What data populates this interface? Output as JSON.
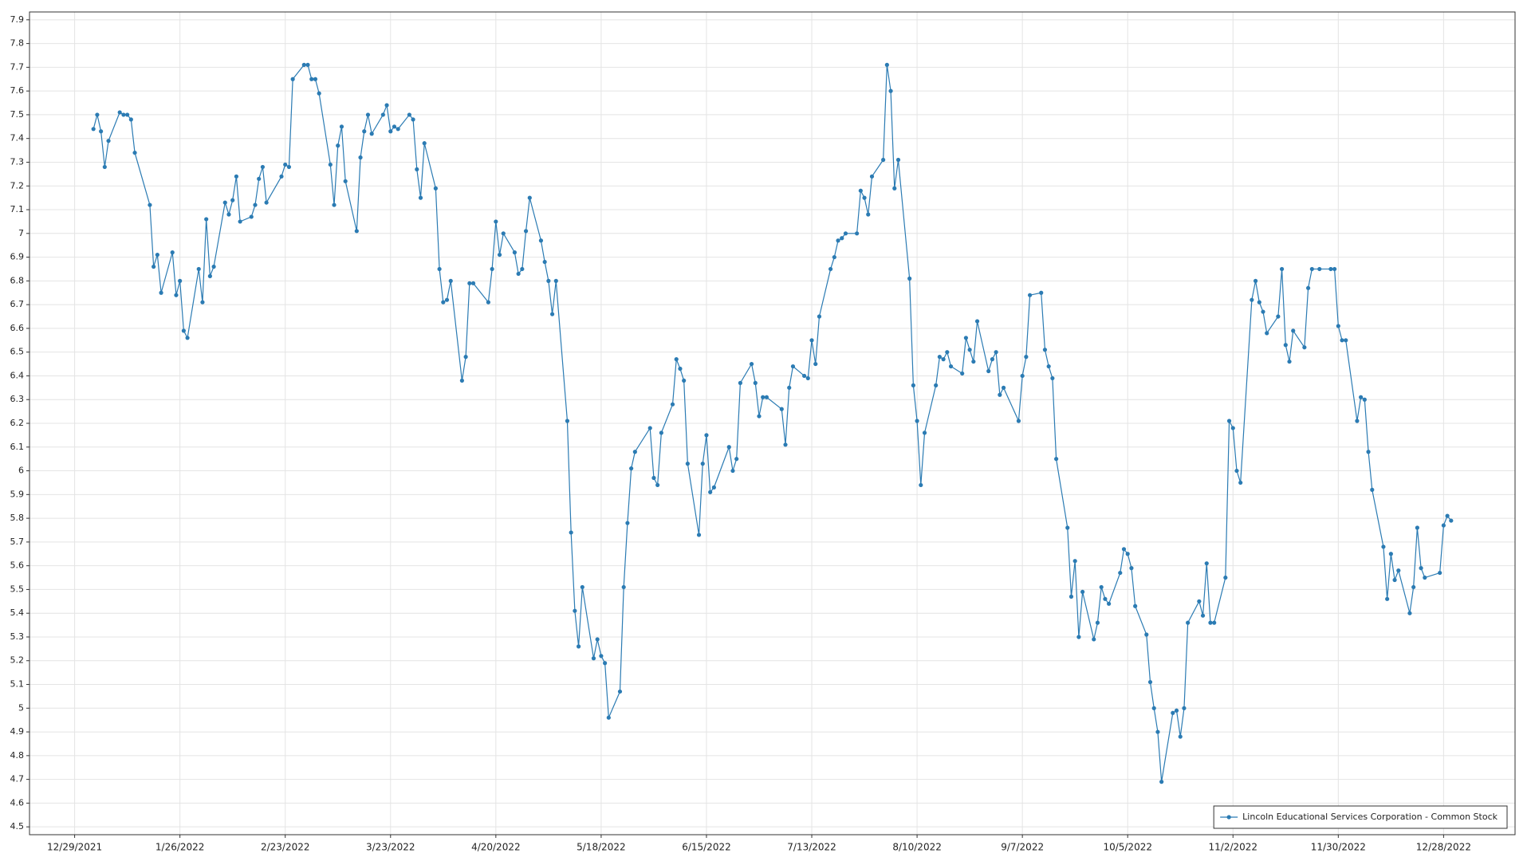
{
  "chart_data": {
    "type": "line",
    "x": [
      "1/3/2022",
      "1/4/2022",
      "1/5/2022",
      "1/6/2022",
      "1/7/2022",
      "1/10/2022",
      "1/11/2022",
      "1/12/2022",
      "1/13/2022",
      "1/14/2022",
      "1/18/2022",
      "1/19/2022",
      "1/20/2022",
      "1/21/2022",
      "1/24/2022",
      "1/25/2022",
      "1/26/2022",
      "1/27/2022",
      "1/28/2022",
      "1/31/2022",
      "2/1/2022",
      "2/2/2022",
      "2/3/2022",
      "2/4/2022",
      "2/7/2022",
      "2/8/2022",
      "2/9/2022",
      "2/10/2022",
      "2/11/2022",
      "2/14/2022",
      "2/15/2022",
      "2/16/2022",
      "2/17/2022",
      "2/18/2022",
      "2/22/2022",
      "2/23/2022",
      "2/24/2022",
      "2/25/2022",
      "2/28/2022",
      "3/1/2022",
      "3/2/2022",
      "3/3/2022",
      "3/4/2022",
      "3/7/2022",
      "3/8/2022",
      "3/9/2022",
      "3/10/2022",
      "3/11/2022",
      "3/14/2022",
      "3/15/2022",
      "3/16/2022",
      "3/17/2022",
      "3/18/2022",
      "3/21/2022",
      "3/22/2022",
      "3/23/2022",
      "3/24/2022",
      "3/25/2022",
      "3/28/2022",
      "3/29/2022",
      "3/30/2022",
      "3/31/2022",
      "4/1/2022",
      "4/4/2022",
      "4/5/2022",
      "4/6/2022",
      "4/7/2022",
      "4/8/2022",
      "4/11/2022",
      "4/12/2022",
      "4/13/2022",
      "4/14/2022",
      "4/18/2022",
      "4/19/2022",
      "4/20/2022",
      "4/21/2022",
      "4/22/2022",
      "4/25/2022",
      "4/26/2022",
      "4/27/2022",
      "4/28/2022",
      "4/29/2022",
      "5/2/2022",
      "5/3/2022",
      "5/4/2022",
      "5/5/2022",
      "5/6/2022",
      "5/9/2022",
      "5/10/2022",
      "5/11/2022",
      "5/12/2022",
      "5/13/2022",
      "5/16/2022",
      "5/17/2022",
      "5/18/2022",
      "5/19/2022",
      "5/20/2022",
      "5/23/2022",
      "5/24/2022",
      "5/25/2022",
      "5/26/2022",
      "5/27/2022",
      "5/31/2022",
      "6/1/2022",
      "6/2/2022",
      "6/3/2022",
      "6/6/2022",
      "6/7/2022",
      "6/8/2022",
      "6/9/2022",
      "6/10/2022",
      "6/13/2022",
      "6/14/2022",
      "6/15/2022",
      "6/16/2022",
      "6/17/2022",
      "6/21/2022",
      "6/22/2022",
      "6/23/2022",
      "6/24/2022",
      "6/27/2022",
      "6/28/2022",
      "6/29/2022",
      "6/30/2022",
      "7/1/2022",
      "7/5/2022",
      "7/6/2022",
      "7/7/2022",
      "7/8/2022",
      "7/11/2022",
      "7/12/2022",
      "7/13/2022",
      "7/14/2022",
      "7/15/2022",
      "7/18/2022",
      "7/19/2022",
      "7/20/2022",
      "7/21/2022",
      "7/22/2022",
      "7/25/2022",
      "7/26/2022",
      "7/27/2022",
      "7/28/2022",
      "7/29/2022",
      "8/1/2022",
      "8/2/2022",
      "8/3/2022",
      "8/4/2022",
      "8/5/2022",
      "8/8/2022",
      "8/9/2022",
      "8/10/2022",
      "8/11/2022",
      "8/12/2022",
      "8/15/2022",
      "8/16/2022",
      "8/17/2022",
      "8/18/2022",
      "8/19/2022",
      "8/22/2022",
      "8/23/2022",
      "8/24/2022",
      "8/25/2022",
      "8/26/2022",
      "8/29/2022",
      "8/30/2022",
      "8/31/2022",
      "9/1/2022",
      "9/2/2022",
      "9/6/2022",
      "9/7/2022",
      "9/8/2022",
      "9/9/2022",
      "9/12/2022",
      "9/13/2022",
      "9/14/2022",
      "9/15/2022",
      "9/16/2022",
      "9/19/2022",
      "9/20/2022",
      "9/21/2022",
      "9/22/2022",
      "9/23/2022",
      "9/26/2022",
      "9/27/2022",
      "9/28/2022",
      "9/29/2022",
      "9/30/2022",
      "10/3/2022",
      "10/4/2022",
      "10/5/2022",
      "10/6/2022",
      "10/7/2022",
      "10/10/2022",
      "10/11/2022",
      "10/12/2022",
      "10/13/2022",
      "10/14/2022",
      "10/17/2022",
      "10/18/2022",
      "10/19/2022",
      "10/20/2022",
      "10/21/2022",
      "10/24/2022",
      "10/25/2022",
      "10/26/2022",
      "10/27/2022",
      "10/28/2022",
      "10/31/2022",
      "11/1/2022",
      "11/2/2022",
      "11/3/2022",
      "11/4/2022",
      "11/7/2022",
      "11/8/2022",
      "11/9/2022",
      "11/10/2022",
      "11/11/2022",
      "11/14/2022",
      "11/15/2022",
      "11/16/2022",
      "11/17/2022",
      "11/18/2022",
      "11/21/2022",
      "11/22/2022",
      "11/23/2022",
      "11/25/2022",
      "11/28/2022",
      "11/29/2022",
      "11/30/2022",
      "12/1/2022",
      "12/2/2022",
      "12/5/2022",
      "12/6/2022",
      "12/7/2022",
      "12/8/2022",
      "12/9/2022",
      "12/12/2022",
      "12/13/2022",
      "12/14/2022",
      "12/15/2022",
      "12/16/2022",
      "12/19/2022",
      "12/20/2022",
      "12/21/2022",
      "12/22/2022",
      "12/23/2022",
      "12/27/2022",
      "12/28/2022",
      "12/29/2022",
      "12/30/2022"
    ],
    "series": [
      {
        "name": "Lincoln Educational Services Corporation - Common Stock",
        "color": "#2b7bb3",
        "values": [
          7.44,
          7.5,
          7.43,
          7.28,
          7.39,
          7.51,
          7.5,
          7.5,
          7.48,
          7.34,
          7.12,
          6.86,
          6.91,
          6.75,
          6.92,
          6.74,
          6.8,
          6.59,
          6.56,
          6.85,
          6.71,
          7.06,
          6.82,
          6.86,
          7.13,
          7.08,
          7.14,
          7.24,
          7.05,
          7.07,
          7.12,
          7.23,
          7.28,
          7.13,
          7.24,
          7.29,
          7.28,
          7.65,
          7.71,
          7.71,
          7.65,
          7.65,
          7.59,
          7.29,
          7.12,
          7.37,
          7.45,
          7.22,
          7.01,
          7.32,
          7.43,
          7.5,
          7.42,
          7.5,
          7.54,
          7.43,
          7.45,
          7.44,
          7.5,
          7.48,
          7.27,
          7.15,
          7.38,
          7.19,
          6.85,
          6.71,
          6.72,
          6.8,
          6.38,
          6.48,
          6.79,
          6.79,
          6.71,
          6.85,
          7.05,
          6.91,
          7.0,
          6.92,
          6.83,
          6.85,
          7.01,
          7.15,
          6.97,
          6.88,
          6.8,
          6.66,
          6.8,
          6.21,
          5.74,
          5.41,
          5.26,
          5.51,
          5.21,
          5.29,
          5.22,
          5.19,
          4.96,
          5.07,
          5.51,
          5.78,
          6.01,
          6.08,
          6.18,
          5.97,
          5.94,
          6.16,
          6.28,
          6.47,
          6.43,
          6.38,
          6.03,
          5.73,
          6.03,
          6.15,
          5.91,
          5.93,
          6.1,
          6.0,
          6.05,
          6.37,
          6.45,
          6.37,
          6.23,
          6.31,
          6.31,
          6.26,
          6.11,
          6.35,
          6.44,
          6.4,
          6.39,
          6.55,
          6.45,
          6.65,
          6.85,
          6.9,
          6.97,
          6.98,
          7.0,
          7.0,
          7.18,
          7.15,
          7.08,
          7.24,
          7.31,
          7.71,
          7.6,
          7.19,
          7.31,
          6.81,
          6.36,
          6.21,
          5.94,
          6.16,
          6.36,
          6.48,
          6.47,
          6.5,
          6.44,
          6.41,
          6.56,
          6.51,
          6.46,
          6.63,
          6.42,
          6.47,
          6.5,
          6.32,
          6.35,
          6.21,
          6.4,
          6.48,
          6.74,
          6.75,
          6.51,
          6.44,
          6.39,
          6.05,
          5.76,
          5.47,
          5.62,
          5.3,
          5.49,
          5.29,
          5.36,
          5.51,
          5.46,
          5.44,
          5.57,
          5.67,
          5.65,
          5.59,
          5.43,
          5.31,
          5.11,
          5.0,
          4.9,
          4.69,
          4.98,
          4.99,
          4.88,
          5.0,
          5.36,
          5.45,
          5.39,
          5.61,
          5.36,
          5.36,
          5.55,
          6.21,
          6.18,
          6.0,
          5.95,
          6.72,
          6.8,
          6.71,
          6.67,
          6.58,
          6.65,
          6.85,
          6.53,
          6.46,
          6.59,
          6.52,
          6.77,
          6.85,
          6.85,
          6.85,
          6.85,
          6.61,
          6.55,
          6.55,
          6.21,
          6.31,
          6.3,
          6.08,
          5.92,
          5.68,
          5.46,
          5.65,
          5.54,
          5.58,
          5.4,
          5.51,
          5.76,
          5.59,
          5.55,
          5.57,
          5.77,
          5.81,
          5.79
        ]
      }
    ],
    "xlim": [
      "12/17/2021",
      "1/16/2023"
    ],
    "xticks": [
      "12/29/2021",
      "1/26/2022",
      "2/23/2022",
      "3/23/2022",
      "4/20/2022",
      "5/18/2022",
      "6/15/2022",
      "7/13/2022",
      "8/10/2022",
      "9/7/2022",
      "10/5/2022",
      "11/2/2022",
      "11/30/2022",
      "12/28/2022"
    ],
    "ylim": [
      4.467,
      7.933
    ],
    "yticks": [
      4.5,
      4.6,
      4.7,
      4.8,
      4.9,
      5,
      5.1,
      5.2,
      5.3,
      5.4,
      5.5,
      5.6,
      5.7,
      5.8,
      5.9,
      6,
      6.1,
      6.2,
      6.3,
      6.4,
      6.5,
      6.6,
      6.7,
      6.8,
      6.9,
      7,
      7.1,
      7.2,
      7.3,
      7.4,
      7.5,
      7.6,
      7.7,
      7.8,
      7.9
    ],
    "grid": true,
    "markers": true,
    "legend": "lower right"
  }
}
